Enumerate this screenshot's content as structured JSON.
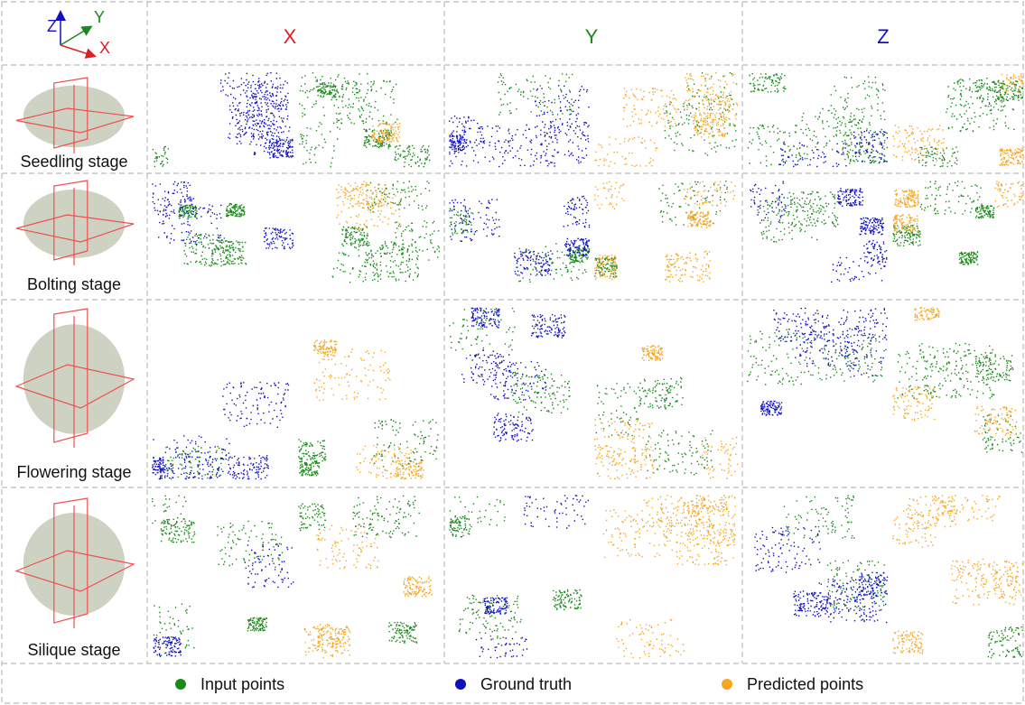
{
  "axes_icon": {
    "z": "Z",
    "y": "Y",
    "x": "X"
  },
  "columns": [
    "X",
    "Y",
    "Z"
  ],
  "rows": [
    "Seedling stage",
    "Bolting stage",
    "Flowering stage",
    "Silique stage"
  ],
  "legend": [
    "Input points",
    "Ground truth",
    "Predicted points"
  ]
}
